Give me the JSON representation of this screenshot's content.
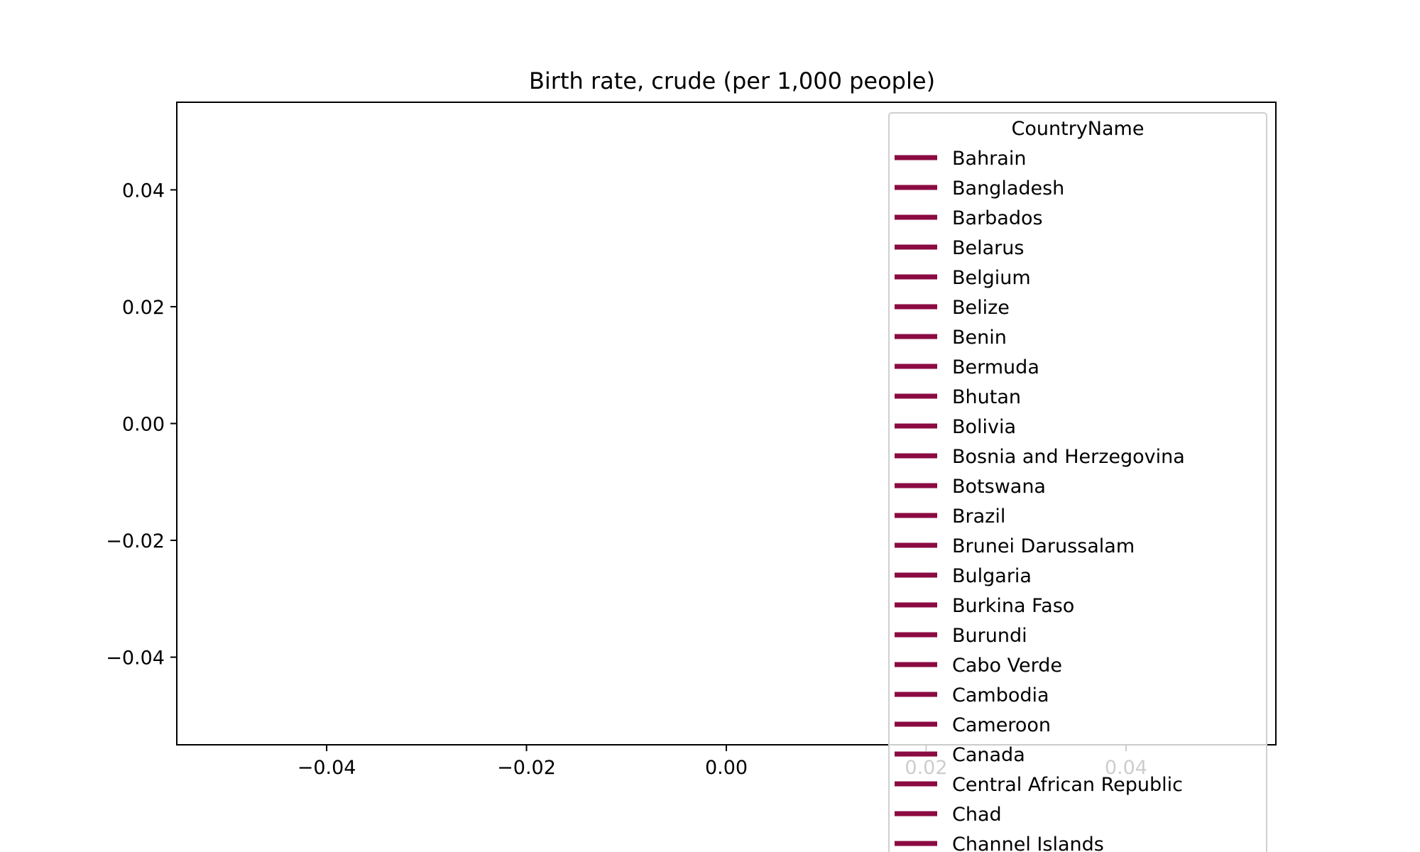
{
  "chart_data": {
    "type": "line",
    "title": "Birth rate, crude (per 1,000 people)",
    "xlabel": "",
    "ylabel": "",
    "xlim": [
      -0.055,
      0.055
    ],
    "ylim": [
      -0.055,
      0.055
    ],
    "x_ticks": [
      "−0.04",
      "−0.02",
      "0.00",
      "0.02",
      "0.04"
    ],
    "x_tick_values": [
      -0.04,
      -0.02,
      0.0,
      0.02,
      0.04
    ],
    "y_ticks": [
      "0.04",
      "0.02",
      "0.00",
      "−0.02",
      "−0.04"
    ],
    "y_tick_values": [
      0.04,
      0.02,
      0.0,
      -0.02,
      -0.04
    ],
    "grid": false,
    "legend": {
      "title": "CountryName",
      "placement": "upper right",
      "entries": [
        "Bahrain",
        "Bangladesh",
        "Barbados",
        "Belarus",
        "Belgium",
        "Belize",
        "Benin",
        "Bermuda",
        "Bhutan",
        "Bolivia",
        "Bosnia and Herzegovina",
        "Botswana",
        "Brazil",
        "Brunei Darussalam",
        "Bulgaria",
        "Burkina Faso",
        "Burundi",
        "Cabo Verde",
        "Cambodia",
        "Cameroon",
        "Canada",
        "Central African Republic",
        "Chad",
        "Channel Islands"
      ]
    },
    "series_color": "#8b0a42",
    "series": []
  }
}
